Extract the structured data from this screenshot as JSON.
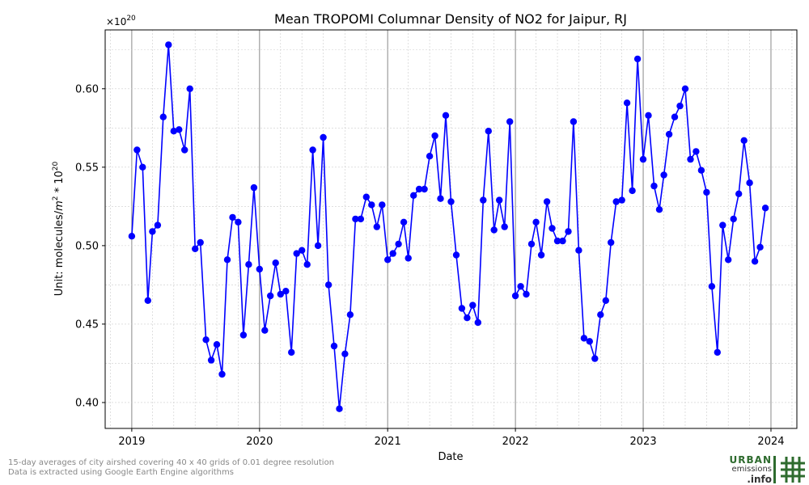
{
  "chart_data": {
    "type": "line",
    "title": "Mean TROPOMI Columnar Density of NO2 for Jaipur, RJ",
    "xlabel": "Date",
    "ylabel_prefix": "Unit: molecules/",
    "ylabel_unit_base": "m",
    "ylabel_unit_exp": "2",
    "ylabel_mult": " * 10",
    "ylabel_mult_exp": "20",
    "offset_base": "×10",
    "offset_exp": "20",
    "xlim": [
      "2018-10-17",
      "2024-03-15"
    ],
    "ylim": [
      0.3835,
      0.6375
    ],
    "x_ticks": [
      {
        "date": "2019-01-01",
        "label": "2019"
      },
      {
        "date": "2020-01-01",
        "label": "2020"
      },
      {
        "date": "2021-01-01",
        "label": "2021"
      },
      {
        "date": "2022-01-01",
        "label": "2022"
      },
      {
        "date": "2023-01-01",
        "label": "2023"
      },
      {
        "date": "2024-01-01",
        "label": "2024"
      }
    ],
    "y_ticks": [
      {
        "value": 0.4,
        "label": "0.40"
      },
      {
        "value": 0.45,
        "label": "0.45"
      },
      {
        "value": 0.5,
        "label": "0.50"
      },
      {
        "value": 0.55,
        "label": "0.55"
      },
      {
        "value": 0.6,
        "label": "0.60"
      }
    ],
    "grid": true,
    "color": "#0000ff",
    "series": [
      {
        "values": [
          0.506,
          0.561,
          0.55,
          0.465,
          0.509,
          0.513,
          0.582,
          0.628,
          0.573,
          0.574,
          0.561,
          0.6,
          0.498,
          0.502,
          0.44,
          0.427,
          0.437,
          0.418,
          0.491,
          0.518,
          0.515,
          0.443,
          0.488,
          0.537,
          0.485,
          0.446,
          0.468,
          0.489,
          0.469,
          0.471,
          0.432,
          0.495,
          0.497,
          0.488,
          0.561,
          0.5,
          0.569,
          0.475,
          0.436,
          0.396,
          0.431,
          0.456,
          0.517,
          0.517,
          0.531,
          0.526,
          0.512,
          0.526,
          0.491,
          0.495,
          0.501,
          0.515,
          0.492,
          0.532,
          0.536,
          0.536,
          0.557,
          0.57,
          0.53,
          0.583,
          0.528,
          0.494,
          0.46,
          0.454,
          0.462,
          0.451,
          0.529,
          0.573,
          0.51,
          0.529,
          0.512,
          0.579,
          0.468,
          0.474,
          0.469,
          0.501,
          0.515,
          0.494,
          0.528,
          0.511,
          0.503,
          0.503,
          0.509,
          0.579,
          0.497,
          0.441,
          0.439,
          0.428,
          0.456,
          0.465,
          0.502,
          0.528,
          0.529,
          0.591,
          0.535,
          0.619,
          0.555,
          0.583,
          0.538,
          0.523,
          0.545,
          0.571,
          0.582,
          0.589,
          0.6,
          0.555,
          0.56,
          0.548,
          0.534,
          0.474,
          0.432,
          0.513,
          0.491,
          0.517,
          0.533,
          0.567,
          0.54,
          0.49,
          0.499,
          0.524
        ]
      }
    ]
  },
  "footnote": {
    "line1": "15-day averages of city airshed covering 40 x 40 grids of 0.01 degree resolution",
    "line2": "Data is extracted using Google Earth Engine algorithms"
  },
  "logo": {
    "line1": "URBAN",
    "line2": "emissions",
    "line3": ".info"
  }
}
